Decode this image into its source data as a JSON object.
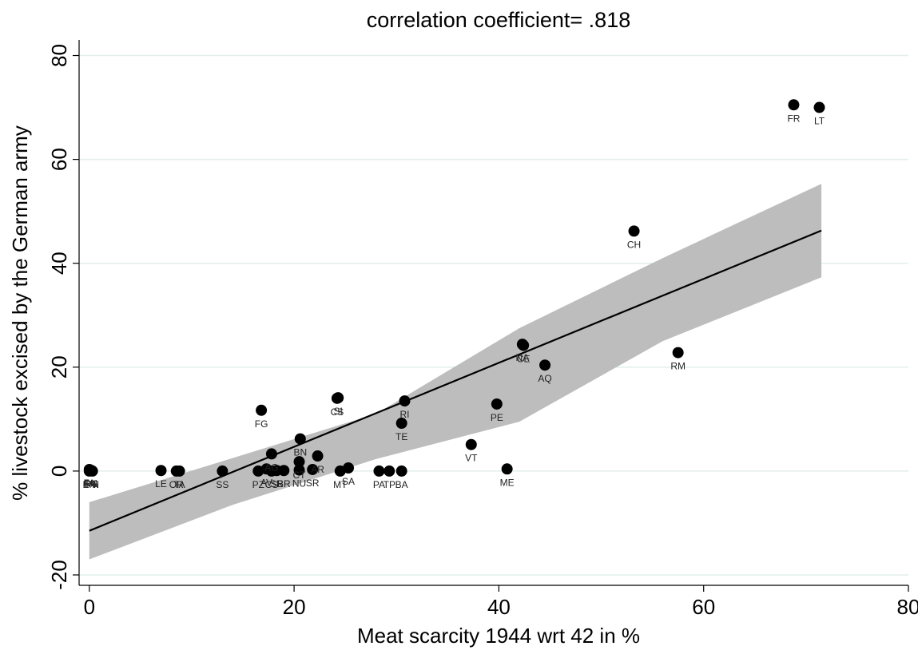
{
  "chart_data": {
    "type": "scatter",
    "title": "correlation coefficient= .818",
    "xlabel": "Meat scarcity 1944 wrt 42 in %",
    "ylabel": "% livestock excised by the German army",
    "xlim": [
      -1,
      80
    ],
    "ylim": [
      -22,
      83
    ],
    "xticks": [
      0,
      20,
      40,
      60,
      80
    ],
    "yticks": [
      -20,
      0,
      20,
      40,
      60,
      80
    ],
    "xtick_labels": [
      "0",
      "20",
      "40",
      "60",
      "80"
    ],
    "ytick_labels": [
      "-20",
      "0",
      "20",
      "40",
      "60",
      "80"
    ],
    "grid": true,
    "legend": "none",
    "colors": {
      "points": "#000000",
      "fit_line": "#000000",
      "ci_band": "#bdbdbd",
      "grid": "#e3eeee"
    },
    "fit": {
      "x_range": [
        0,
        71.5
      ],
      "line_y": [
        -11.5,
        46.3
      ],
      "ci_x": [
        0,
        14,
        28,
        42,
        56,
        71.5
      ],
      "ci_lower": [
        -17,
        -6.5,
        2.3,
        9.5,
        25,
        37.3
      ],
      "ci_upper": [
        -6,
        2.5,
        11,
        27.5,
        41,
        55.3
      ]
    },
    "points": [
      {
        "x": 0,
        "y": 0.3,
        "label": "FA"
      },
      {
        "x": 0.2,
        "y": 0.1,
        "label": "RG"
      },
      {
        "x": 0,
        "y": 0,
        "label": "EN"
      },
      {
        "x": 0.1,
        "y": 0.2,
        "label": "CN"
      },
      {
        "x": 0.3,
        "y": 0,
        "label": "PN"
      },
      {
        "x": 7,
        "y": 0.1,
        "label": "LE"
      },
      {
        "x": 8.5,
        "y": 0,
        "label": "OR"
      },
      {
        "x": 8.8,
        "y": 0,
        "label": "TA"
      },
      {
        "x": 13,
        "y": 0,
        "label": "SS"
      },
      {
        "x": 16.5,
        "y": 0,
        "label": "PZ"
      },
      {
        "x": 17.3,
        "y": 0.4,
        "label": "AV"
      },
      {
        "x": 17.8,
        "y": 0,
        "label": "CS"
      },
      {
        "x": 18.3,
        "y": 0.1,
        "label": "SR"
      },
      {
        "x": 19,
        "y": 0.1,
        "label": "BR"
      },
      {
        "x": 20.5,
        "y": 0.2,
        "label": "NU"
      },
      {
        "x": 20.5,
        "y": 1.8,
        "label": "CT"
      },
      {
        "x": 21.8,
        "y": 0.3,
        "label": "SR"
      },
      {
        "x": 22.3,
        "y": 2.9,
        "label": "AR"
      },
      {
        "x": 17.8,
        "y": 3.3,
        "label": "AG"
      },
      {
        "x": 20.6,
        "y": 6.2,
        "label": "BN"
      },
      {
        "x": 16.8,
        "y": 11.7,
        "label": "FG"
      },
      {
        "x": 24.2,
        "y": 14,
        "label": "CS"
      },
      {
        "x": 24.3,
        "y": 14.1,
        "label": "SI"
      },
      {
        "x": 24.5,
        "y": 0,
        "label": "MT"
      },
      {
        "x": 25.3,
        "y": 0.6,
        "label": "SA"
      },
      {
        "x": 28.3,
        "y": 0,
        "label": "PA"
      },
      {
        "x": 29.3,
        "y": 0,
        "label": "TP"
      },
      {
        "x": 30.5,
        "y": 0,
        "label": "BA"
      },
      {
        "x": 30.5,
        "y": 9.2,
        "label": "TE"
      },
      {
        "x": 30.8,
        "y": 13.5,
        "label": "RI"
      },
      {
        "x": 37.3,
        "y": 5.1,
        "label": "VT"
      },
      {
        "x": 39.8,
        "y": 12.9,
        "label": "PE"
      },
      {
        "x": 40.8,
        "y": 0.4,
        "label": "ME"
      },
      {
        "x": 42.3,
        "y": 24.4,
        "label": "NA"
      },
      {
        "x": 42.4,
        "y": 24.2,
        "label": "CE"
      },
      {
        "x": 44.5,
        "y": 20.4,
        "label": "AQ"
      },
      {
        "x": 53.2,
        "y": 46.2,
        "label": "CH"
      },
      {
        "x": 57.5,
        "y": 22.8,
        "label": "RM"
      },
      {
        "x": 68.8,
        "y": 70.5,
        "label": "FR"
      },
      {
        "x": 71.3,
        "y": 70,
        "label": "LT"
      }
    ]
  }
}
